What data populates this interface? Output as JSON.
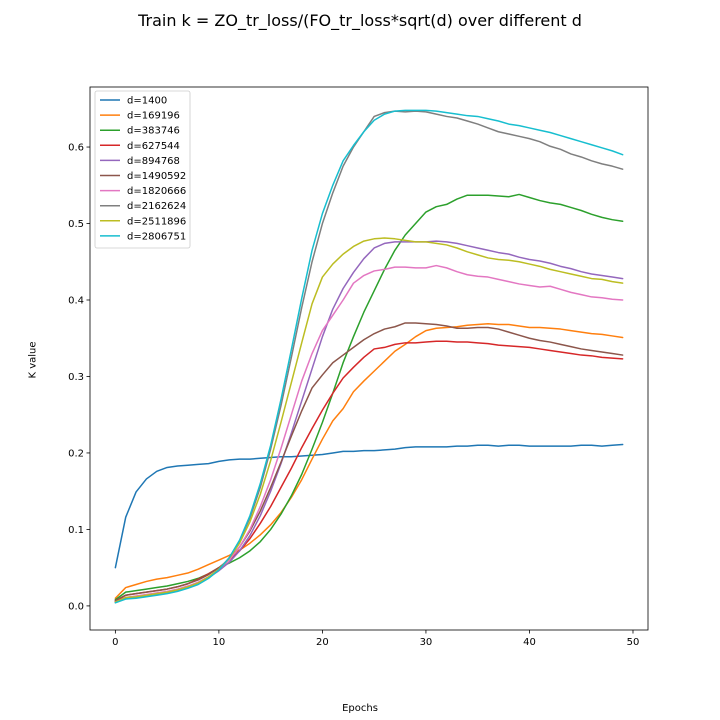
{
  "chart_data": {
    "type": "line",
    "title": "Train k = ZO_tr_loss/(FO_tr_loss*sqrt(d) over different d",
    "xlabel": "Epochs",
    "ylabel": "K value",
    "xlim": [
      -2.45,
      51.45
    ],
    "ylim": [
      -0.0315,
      0.6785
    ],
    "xticks": [
      0,
      10,
      20,
      30,
      40,
      50
    ],
    "yticks": [
      0.0,
      0.1,
      0.2,
      0.3,
      0.4,
      0.5,
      0.6
    ],
    "xtick_labels": [
      "0",
      "10",
      "20",
      "30",
      "40",
      "50"
    ],
    "ytick_labels": [
      "0.0",
      "0.1",
      "0.2",
      "0.3",
      "0.4",
      "0.5",
      "0.6"
    ],
    "grid": false,
    "legend_position": "top-left",
    "x": [
      0,
      1,
      2,
      3,
      4,
      5,
      6,
      7,
      8,
      9,
      10,
      11,
      12,
      13,
      14,
      15,
      16,
      17,
      18,
      19,
      20,
      21,
      22,
      23,
      24,
      25,
      26,
      27,
      28,
      29,
      30,
      31,
      32,
      33,
      34,
      35,
      36,
      37,
      38,
      39,
      40,
      41,
      42,
      43,
      44,
      45,
      46,
      47,
      48,
      49
    ],
    "series": [
      {
        "name": "d=1400",
        "color": "#1f77b4",
        "values": [
          0.05,
          0.116,
          0.149,
          0.166,
          0.176,
          0.181,
          0.183,
          0.184,
          0.185,
          0.186,
          0.189,
          0.191,
          0.192,
          0.192,
          0.193,
          0.194,
          0.195,
          0.195,
          0.196,
          0.197,
          0.198,
          0.2,
          0.202,
          0.202,
          0.203,
          0.203,
          0.204,
          0.205,
          0.207,
          0.208,
          0.208,
          0.208,
          0.208,
          0.209,
          0.209,
          0.21,
          0.21,
          0.209,
          0.21,
          0.21,
          0.209,
          0.209,
          0.209,
          0.209,
          0.209,
          0.21,
          0.21,
          0.209,
          0.21,
          0.211
        ]
      },
      {
        "name": "d=169196",
        "color": "#ff7f0e",
        "values": [
          0.01,
          0.024,
          0.028,
          0.032,
          0.035,
          0.037,
          0.04,
          0.043,
          0.048,
          0.054,
          0.06,
          0.066,
          0.073,
          0.082,
          0.093,
          0.106,
          0.122,
          0.142,
          0.165,
          0.192,
          0.218,
          0.242,
          0.258,
          0.28,
          0.294,
          0.307,
          0.32,
          0.333,
          0.342,
          0.352,
          0.36,
          0.363,
          0.364,
          0.365,
          0.367,
          0.368,
          0.369,
          0.368,
          0.368,
          0.366,
          0.364,
          0.364,
          0.363,
          0.362,
          0.36,
          0.358,
          0.356,
          0.355,
          0.353,
          0.351
        ]
      },
      {
        "name": "d=383746",
        "color": "#2ca02c",
        "values": [
          0.008,
          0.018,
          0.02,
          0.022,
          0.024,
          0.026,
          0.029,
          0.032,
          0.036,
          0.042,
          0.05,
          0.056,
          0.063,
          0.072,
          0.084,
          0.1,
          0.12,
          0.144,
          0.172,
          0.205,
          0.24,
          0.278,
          0.318,
          0.352,
          0.384,
          0.412,
          0.44,
          0.465,
          0.485,
          0.5,
          0.515,
          0.522,
          0.525,
          0.532,
          0.537,
          0.537,
          0.537,
          0.536,
          0.535,
          0.538,
          0.534,
          0.53,
          0.527,
          0.525,
          0.521,
          0.517,
          0.512,
          0.508,
          0.505,
          0.503
        ]
      },
      {
        "name": "d=627544",
        "color": "#d62728",
        "values": [
          0.006,
          0.014,
          0.016,
          0.018,
          0.02,
          0.022,
          0.025,
          0.029,
          0.035,
          0.042,
          0.05,
          0.06,
          0.072,
          0.088,
          0.108,
          0.13,
          0.155,
          0.18,
          0.207,
          0.232,
          0.256,
          0.278,
          0.298,
          0.312,
          0.325,
          0.336,
          0.338,
          0.342,
          0.344,
          0.344,
          0.345,
          0.346,
          0.346,
          0.345,
          0.345,
          0.344,
          0.343,
          0.341,
          0.34,
          0.339,
          0.338,
          0.336,
          0.334,
          0.332,
          0.33,
          0.328,
          0.327,
          0.325,
          0.324,
          0.323
        ]
      },
      {
        "name": "d=894768",
        "color": "#9467bd",
        "values": [
          0.005,
          0.011,
          0.012,
          0.014,
          0.016,
          0.018,
          0.021,
          0.025,
          0.03,
          0.037,
          0.046,
          0.057,
          0.072,
          0.092,
          0.118,
          0.15,
          0.186,
          0.226,
          0.268,
          0.31,
          0.352,
          0.388,
          0.415,
          0.436,
          0.454,
          0.468,
          0.474,
          0.476,
          0.476,
          0.476,
          0.476,
          0.477,
          0.476,
          0.474,
          0.471,
          0.468,
          0.465,
          0.462,
          0.46,
          0.456,
          0.453,
          0.451,
          0.448,
          0.444,
          0.441,
          0.437,
          0.434,
          0.432,
          0.43,
          0.428
        ]
      },
      {
        "name": "d=1490592",
        "color": "#8c564b",
        "values": [
          0.007,
          0.014,
          0.016,
          0.018,
          0.02,
          0.022,
          0.025,
          0.029,
          0.034,
          0.041,
          0.05,
          0.061,
          0.077,
          0.098,
          0.124,
          0.155,
          0.188,
          0.222,
          0.255,
          0.285,
          0.302,
          0.318,
          0.328,
          0.338,
          0.348,
          0.356,
          0.362,
          0.365,
          0.37,
          0.37,
          0.369,
          0.368,
          0.366,
          0.363,
          0.363,
          0.364,
          0.364,
          0.362,
          0.358,
          0.354,
          0.35,
          0.347,
          0.345,
          0.342,
          0.339,
          0.336,
          0.334,
          0.332,
          0.33,
          0.328
        ]
      },
      {
        "name": "d=1820666",
        "color": "#e377c2",
        "values": [
          0.005,
          0.011,
          0.013,
          0.015,
          0.017,
          0.019,
          0.022,
          0.026,
          0.031,
          0.038,
          0.048,
          0.06,
          0.077,
          0.1,
          0.13,
          0.165,
          0.206,
          0.25,
          0.294,
          0.33,
          0.36,
          0.38,
          0.4,
          0.422,
          0.432,
          0.438,
          0.44,
          0.443,
          0.443,
          0.442,
          0.442,
          0.445,
          0.442,
          0.437,
          0.433,
          0.431,
          0.43,
          0.427,
          0.424,
          0.421,
          0.419,
          0.417,
          0.418,
          0.414,
          0.41,
          0.407,
          0.404,
          0.403,
          0.401,
          0.4
        ]
      },
      {
        "name": "d=2162624",
        "color": "#7f7f7f",
        "values": [
          0.005,
          0.01,
          0.011,
          0.013,
          0.015,
          0.017,
          0.02,
          0.024,
          0.029,
          0.037,
          0.048,
          0.063,
          0.085,
          0.115,
          0.155,
          0.205,
          0.262,
          0.325,
          0.39,
          0.45,
          0.5,
          0.54,
          0.575,
          0.6,
          0.62,
          0.64,
          0.645,
          0.647,
          0.646,
          0.647,
          0.646,
          0.643,
          0.64,
          0.638,
          0.634,
          0.63,
          0.625,
          0.62,
          0.617,
          0.614,
          0.611,
          0.607,
          0.601,
          0.597,
          0.591,
          0.587,
          0.582,
          0.578,
          0.575,
          0.571
        ]
      },
      {
        "name": "d=2511896",
        "color": "#bcbd22",
        "values": [
          0.005,
          0.011,
          0.012,
          0.014,
          0.016,
          0.018,
          0.021,
          0.025,
          0.03,
          0.038,
          0.048,
          0.062,
          0.082,
          0.11,
          0.146,
          0.19,
          0.24,
          0.292,
          0.344,
          0.395,
          0.43,
          0.447,
          0.46,
          0.47,
          0.477,
          0.48,
          0.481,
          0.48,
          0.478,
          0.476,
          0.476,
          0.474,
          0.472,
          0.468,
          0.463,
          0.459,
          0.455,
          0.453,
          0.452,
          0.45,
          0.447,
          0.444,
          0.44,
          0.437,
          0.434,
          0.431,
          0.428,
          0.427,
          0.424,
          0.422
        ]
      },
      {
        "name": "d=2806751",
        "color": "#17becf",
        "values": [
          0.004,
          0.009,
          0.01,
          0.012,
          0.014,
          0.016,
          0.019,
          0.023,
          0.028,
          0.036,
          0.047,
          0.063,
          0.086,
          0.118,
          0.16,
          0.21,
          0.27,
          0.335,
          0.402,
          0.465,
          0.513,
          0.55,
          0.582,
          0.602,
          0.62,
          0.635,
          0.643,
          0.647,
          0.648,
          0.648,
          0.648,
          0.647,
          0.645,
          0.643,
          0.641,
          0.64,
          0.637,
          0.634,
          0.63,
          0.628,
          0.625,
          0.622,
          0.619,
          0.615,
          0.611,
          0.607,
          0.603,
          0.599,
          0.595,
          0.59
        ]
      }
    ]
  }
}
